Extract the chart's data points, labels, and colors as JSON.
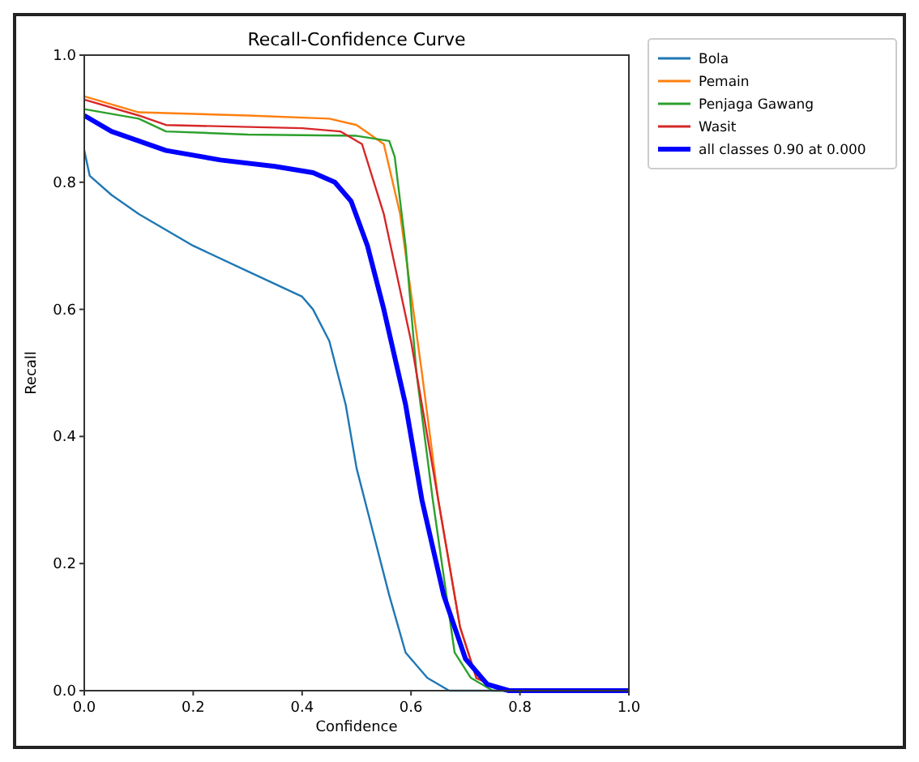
{
  "chart_data": {
    "type": "line",
    "title": "Recall-Confidence Curve",
    "xlabel": "Confidence",
    "ylabel": "Recall",
    "xlim": [
      0,
      1
    ],
    "ylim": [
      0,
      1
    ],
    "xticks": [
      {
        "value": 0,
        "label": "0.0"
      },
      {
        "value": 0.2,
        "label": "0.2"
      },
      {
        "value": 0.4,
        "label": "0.4"
      },
      {
        "value": 0.6,
        "label": "0.6"
      },
      {
        "value": 0.8,
        "label": "0.8"
      },
      {
        "value": 1,
        "label": "1.0"
      }
    ],
    "yticks": [
      {
        "value": 0,
        "label": "0.0"
      },
      {
        "value": 0.2,
        "label": "0.2"
      },
      {
        "value": 0.4,
        "label": "0.4"
      },
      {
        "value": 0.6,
        "label": "0.6"
      },
      {
        "value": 0.8,
        "label": "0.8"
      },
      {
        "value": 1,
        "label": "1.0"
      }
    ],
    "legend": "right",
    "grid": false,
    "marker": "none",
    "line_style": "solid",
    "series": [
      {
        "name": "Bola",
        "color": "#1f77b4",
        "x": [
          0,
          0.01,
          0.05,
          0.1,
          0.2,
          0.3,
          0.4,
          0.42,
          0.45,
          0.48,
          0.5,
          0.53,
          0.56,
          0.59,
          0.63,
          0.67,
          0.8,
          1
        ],
        "values": [
          0.85,
          0.81,
          0.78,
          0.75,
          0.7,
          0.66,
          0.62,
          0.6,
          0.55,
          0.45,
          0.35,
          0.25,
          0.15,
          0.06,
          0.02,
          0,
          0,
          0
        ]
      },
      {
        "name": "Pemain",
        "color": "#ff7f0e",
        "x": [
          0,
          0.1,
          0.3,
          0.45,
          0.5,
          0.55,
          0.58,
          0.62,
          0.65,
          0.69,
          0.72,
          0.77,
          1
        ],
        "values": [
          0.935,
          0.91,
          0.905,
          0.9,
          0.89,
          0.86,
          0.75,
          0.5,
          0.3,
          0.1,
          0.02,
          0,
          0
        ]
      },
      {
        "name": "Penjaga Gawang",
        "color": "#2ca02c",
        "x": [
          0,
          0.1,
          0.15,
          0.3,
          0.5,
          0.56,
          0.57,
          0.59,
          0.61,
          0.64,
          0.67,
          0.68,
          0.71,
          0.75,
          1
        ],
        "values": [
          0.915,
          0.9,
          0.88,
          0.875,
          0.873,
          0.865,
          0.84,
          0.7,
          0.5,
          0.3,
          0.12,
          0.06,
          0.02,
          0,
          0
        ]
      },
      {
        "name": "Wasit",
        "color": "#d62728",
        "x": [
          0,
          0.1,
          0.15,
          0.4,
          0.47,
          0.51,
          0.55,
          0.6,
          0.65,
          0.69,
          0.72,
          0.77,
          1
        ],
        "values": [
          0.93,
          0.905,
          0.89,
          0.885,
          0.88,
          0.86,
          0.75,
          0.55,
          0.3,
          0.1,
          0.02,
          0,
          0
        ]
      },
      {
        "name": "all classes 0.90 at 0.000",
        "color": "#0000ff",
        "x": [
          0,
          0.05,
          0.15,
          0.25,
          0.35,
          0.42,
          0.46,
          0.49,
          0.52,
          0.55,
          0.59,
          0.62,
          0.66,
          0.7,
          0.74,
          0.78,
          1
        ],
        "values": [
          0.905,
          0.88,
          0.85,
          0.835,
          0.825,
          0.815,
          0.8,
          0.77,
          0.7,
          0.6,
          0.45,
          0.3,
          0.15,
          0.05,
          0.01,
          0,
          0
        ]
      }
    ]
  }
}
